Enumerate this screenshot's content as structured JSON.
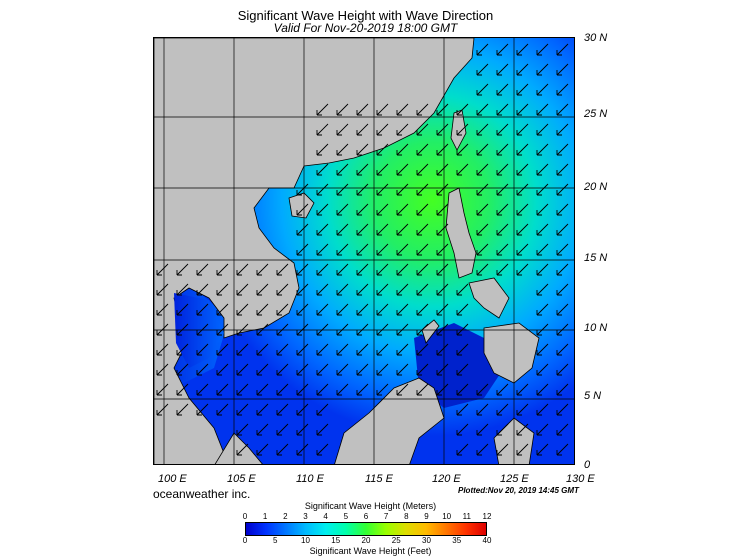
{
  "title": "Significant Wave Height with Wave Direction",
  "subtitle": "Valid For Nov-20-2019 18:00 GMT",
  "lat_labels": [
    "30 N",
    "25 N",
    "20 N",
    "15 N",
    "10 N",
    "5 N",
    "0"
  ],
  "lon_labels": [
    "100 E",
    "105 E",
    "110 E",
    "115 E",
    "120 E",
    "125 E",
    "130 E"
  ],
  "credit": "oceanweather inc.",
  "plotted": "Plotted:Nov 20, 2019 14:45 GMT",
  "colorbar": {
    "meters_label": "Significant Wave Height (Meters)",
    "feet_label": "Significant Wave Height (Feet)",
    "meters_ticks": [
      "0",
      "1",
      "2",
      "3",
      "4",
      "5",
      "6",
      "7",
      "8",
      "9",
      "10",
      "11",
      "12"
    ],
    "feet_ticks": [
      "0",
      "5",
      "10",
      "15",
      "20",
      "25",
      "30",
      "35",
      "40"
    ],
    "colors": [
      "#0000cc",
      "#0033ff",
      "#0077ff",
      "#00bbff",
      "#00eeee",
      "#00ffaa",
      "#33ff33",
      "#99ff00",
      "#dddd00",
      "#ffbb00",
      "#ff7700",
      "#ff3300",
      "#dd0000"
    ]
  },
  "colors": {
    "land": "#c0c0c0",
    "coast": "#000000",
    "arrow": "#000000",
    "grid": "#000000"
  }
}
